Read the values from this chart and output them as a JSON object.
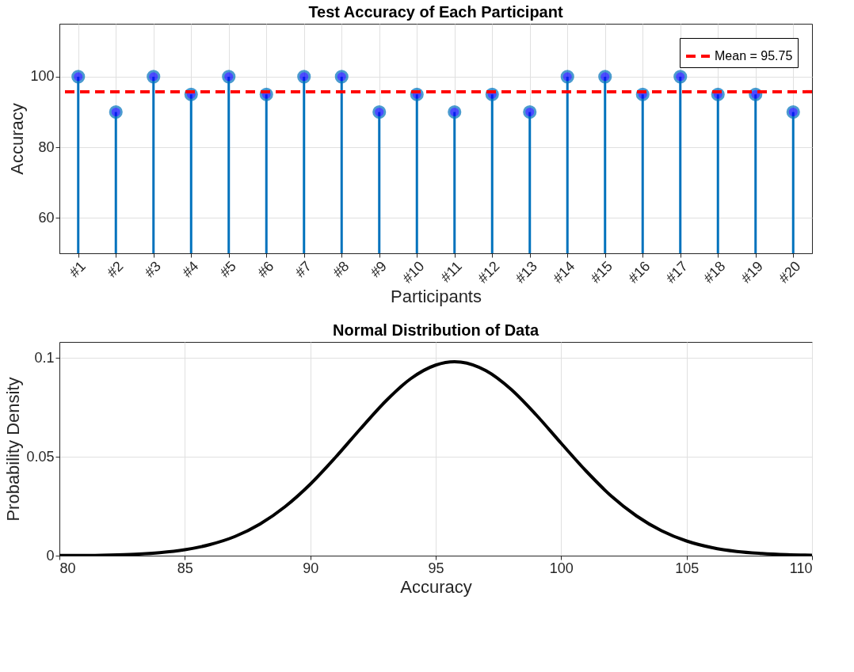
{
  "chart_data": [
    {
      "type": "lollipop",
      "title": "Test Accuracy of Each Participant",
      "xlabel": "Participants",
      "ylabel": "Accuracy",
      "categories": [
        "#1",
        "#2",
        "#3",
        "#4",
        "#5",
        "#6",
        "#7",
        "#8",
        "#9",
        "#10",
        "#11",
        "#12",
        "#13",
        "#14",
        "#15",
        "#16",
        "#17",
        "#18",
        "#19",
        "#20"
      ],
      "series": [
        {
          "color": "#0072bd",
          "values": [
            100,
            90,
            100,
            95,
            100,
            95,
            100,
            100,
            90,
            95,
            90,
            95,
            90,
            100,
            100,
            95,
            100,
            95,
            95,
            90
          ]
        }
      ],
      "ylim": [
        50,
        115
      ],
      "yticks": [
        60,
        80,
        100
      ],
      "ref_lines": [
        {
          "axis": "y",
          "value": 95.75,
          "label": "Mean = 95.75",
          "color": "#ff0000",
          "line_style": "dashed"
        }
      ],
      "grid": true,
      "legend": "top right",
      "marker": "circle"
    },
    {
      "type": "line",
      "title": "Normal Distribution of Data",
      "xlabel": "Accuracy",
      "ylabel": "Probability Density",
      "x": [
        80,
        81,
        82,
        83,
        84,
        85,
        86,
        87,
        88,
        89,
        90,
        91,
        92,
        93,
        94,
        95,
        95.75,
        96,
        97,
        98,
        99,
        100,
        101,
        102,
        103,
        104,
        105,
        106,
        107,
        108,
        109,
        110
      ],
      "series": [
        {
          "color": "#000000",
          "values": [
            0.0001,
            0.0001,
            0.0003,
            0.0007,
            0.0015,
            0.003,
            0.0056,
            0.0097,
            0.016,
            0.0248,
            0.0361,
            0.0496,
            0.0641,
            0.078,
            0.0894,
            0.0963,
            0.098,
            0.0978,
            0.0935,
            0.0841,
            0.0712,
            0.0568,
            0.0427,
            0.0301,
            0.0201,
            0.0126,
            0.0074,
            0.0041,
            0.0021,
            0.0011,
            0.0005,
            0.0002
          ]
        }
      ],
      "xlim": [
        80,
        110
      ],
      "xticks": [
        80,
        85,
        90,
        95,
        100,
        105,
        110
      ],
      "ylim": [
        0,
        0.108
      ],
      "yticks": [
        0,
        0.05,
        0.1
      ],
      "grid": true,
      "marker": "none",
      "line_style": "solid"
    }
  ]
}
